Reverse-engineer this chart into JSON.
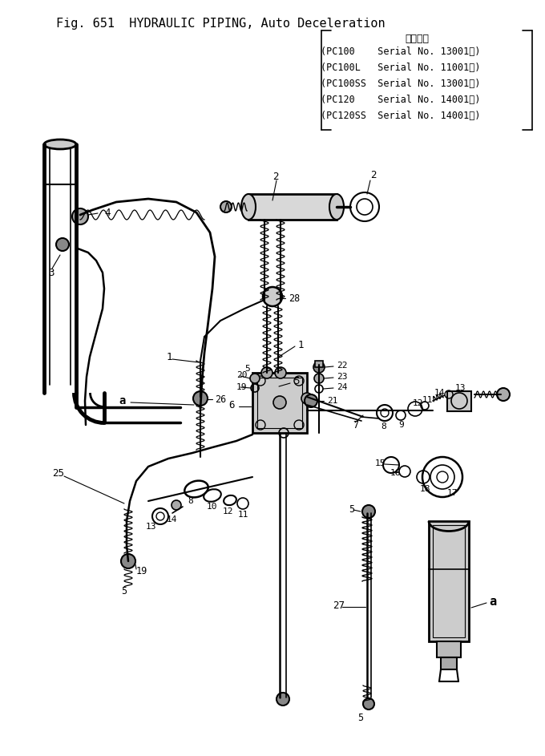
{
  "title": "Fig. 651  HYDRAULIC PIPING, Auto Deceleration",
  "serial_header": "適用号機",
  "serial_lines": [
    "(PC100    Serial No. 13001～)",
    "(PC100L   Serial No. 11001～)",
    "(PC100SS  Serial No. 13001～)",
    "(PC120    Serial No. 14001～)",
    "(PC120SS  Serial No. 14001～)"
  ],
  "bg_color": "#ffffff",
  "line_color": "#000000",
  "fig_width": 6.8,
  "fig_height": 9.43
}
